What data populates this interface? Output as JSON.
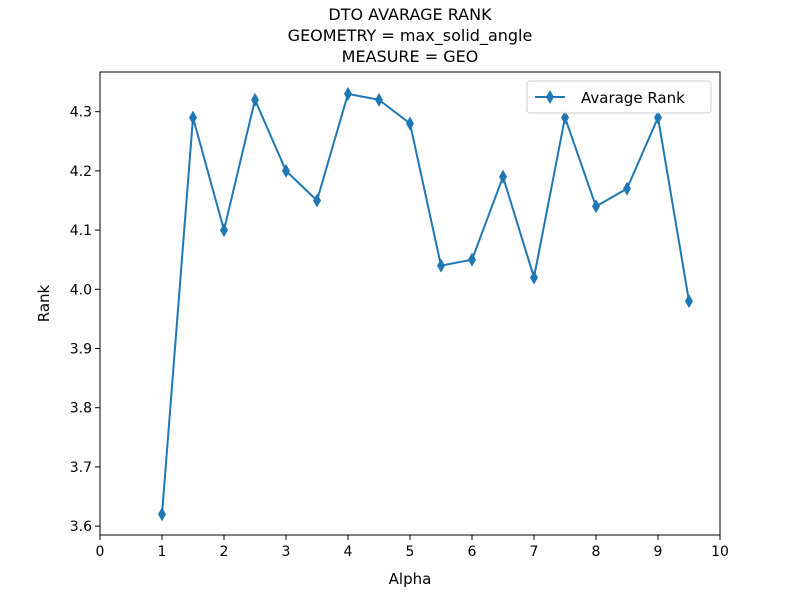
{
  "chart_data": {
    "type": "line",
    "title_lines": [
      "DTO AVARAGE RANK",
      "GEOMETRY = max_solid_angle",
      "MEASURE = GEO"
    ],
    "xlabel": "Alpha",
    "ylabel": "Rank",
    "xlim": [
      0,
      10
    ],
    "ylim": [
      3.585,
      4.367
    ],
    "x_ticks": [
      0,
      1,
      2,
      3,
      4,
      5,
      6,
      7,
      8,
      9,
      10
    ],
    "y_ticks": [
      3.6,
      3.7,
      3.8,
      3.9,
      4.0,
      4.1,
      4.2,
      4.3
    ],
    "y_tick_labels": [
      "3.6",
      "3.7",
      "3.8",
      "3.9",
      "4.0",
      "4.1",
      "4.2",
      "4.3"
    ],
    "grid": false,
    "legend_position": "top-right",
    "series": [
      {
        "name": "Avarage Rank",
        "color": "#1f77b4",
        "marker": "thin-diamond",
        "x": [
          1,
          1.5,
          2,
          2.5,
          3,
          3.5,
          4,
          4.5,
          5,
          5.5,
          6,
          6.5,
          7,
          7.5,
          8,
          8.5,
          9,
          9.5
        ],
        "y": [
          3.62,
          4.29,
          4.1,
          4.32,
          4.2,
          4.15,
          4.33,
          4.32,
          4.28,
          4.04,
          4.05,
          4.19,
          4.02,
          4.29,
          4.14,
          4.17,
          4.29,
          3.98
        ]
      }
    ]
  }
}
